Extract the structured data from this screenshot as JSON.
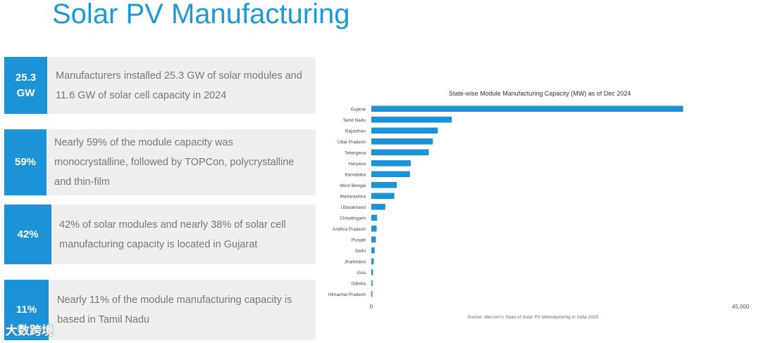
{
  "title": "Solar PV Manufacturing",
  "stats": [
    {
      "badge": "25.3\nGW",
      "text": "Manufacturers installed 25.3 GW of solar modules and 11.6 GW of solar cell capacity in 2024"
    },
    {
      "badge": "59%",
      "text": "Nearly 59% of the module capacity was monocrystalline, followed by TOPCon, polycrystalline and thin-film"
    },
    {
      "badge": "42%",
      "text": "42% of solar modules and nearly 38% of solar cell manufacturing capacity is located in Gujarat"
    },
    {
      "badge": "11%",
      "text": "Nearly 11% of the module manufacturing capacity is based in Tamil Nadu"
    }
  ],
  "chart_data": {
    "type": "bar",
    "orientation": "horizontal",
    "title": "State-wise Module Manufacturing Capacity (MW) as of Dec 2024",
    "categories": [
      "Gujarat",
      "Tamil Nadu",
      "Rajasthan",
      "Uttar Pradesh",
      "Telangana",
      "Haryana",
      "Karnataka",
      "West Bengal",
      "Maharashtra",
      "Uttarakhand",
      "Chhattisgarh",
      "Andhra Pradesh",
      "Punjab",
      "Delhi",
      "Jharkhand",
      "Goa",
      "Odisha",
      "Himachal Pradesh"
    ],
    "values": [
      38000,
      9800,
      8100,
      7500,
      7000,
      4800,
      4700,
      3100,
      2800,
      1700,
      700,
      650,
      550,
      400,
      300,
      200,
      150,
      80
    ],
    "xlim": [
      0,
      45000
    ],
    "x_tick_labels": [
      "0",
      "45,000"
    ],
    "source": "Source: Mercom's  State of Solar PV Manufacturing in India 2025",
    "bar_color": "#1b93d6"
  },
  "watermark": "大数跨境"
}
